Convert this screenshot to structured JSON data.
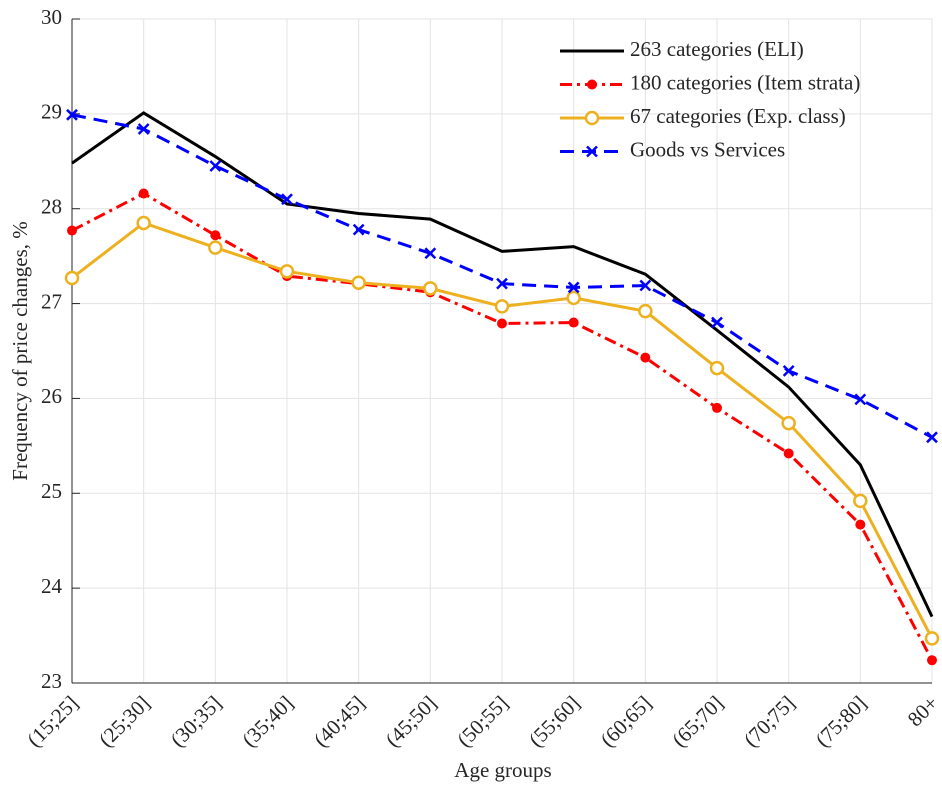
{
  "chart_data": {
    "type": "line",
    "x_label": "Age groups",
    "y_label": "Frequency of price changes, %",
    "categories": [
      "(15;25]",
      "(25;30]",
      "(30;35]",
      "(35;40]",
      "(40;45]",
      "(45;50]",
      "(50;55]",
      "(55;60]",
      "(60;65]",
      "(65;70]",
      "(70;75]",
      "(75;80]",
      "80+"
    ],
    "series": [
      {
        "name": "263 categories (ELI)",
        "color": "#000000",
        "line_style": "solid",
        "marker": "none",
        "values": [
          28.48,
          29.01,
          28.55,
          28.05,
          27.95,
          27.89,
          27.55,
          27.6,
          27.31,
          26.72,
          26.12,
          25.3,
          23.7
        ]
      },
      {
        "name": "180 categories (Item strata)",
        "color": "#ff0000",
        "line_style": "dashdot",
        "marker": "filled-circle",
        "values": [
          27.77,
          28.16,
          27.72,
          27.29,
          27.21,
          27.12,
          26.79,
          26.8,
          26.43,
          25.9,
          25.42,
          24.67,
          23.24
        ]
      },
      {
        "name": "67 categories (Exp. class)",
        "color": "#edb120",
        "line_style": "solid",
        "marker": "open-circle",
        "values": [
          27.27,
          27.85,
          27.59,
          27.34,
          27.22,
          27.16,
          26.97,
          27.06,
          26.92,
          26.32,
          25.74,
          24.92,
          23.47
        ]
      },
      {
        "name": "Goods vs Services",
        "color": "#0000ff",
        "line_style": "dashed",
        "marker": "x",
        "values": [
          28.99,
          28.84,
          28.45,
          28.1,
          27.78,
          27.53,
          27.21,
          27.17,
          27.19,
          26.8,
          26.29,
          25.99,
          25.59
        ]
      }
    ],
    "ylim": [
      23,
      30
    ],
    "yticks": [
      23,
      24,
      25,
      26,
      27,
      28,
      29,
      30
    ],
    "grid": true,
    "legend": "top-right"
  }
}
